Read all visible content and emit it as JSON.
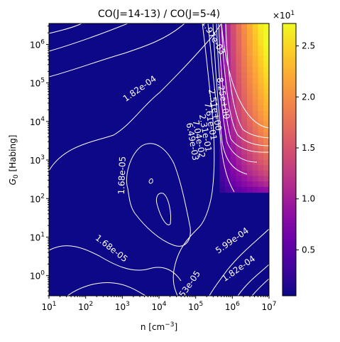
{
  "chart_data": {
    "type": "heatmap",
    "title": "CO(J=14-13) / CO(J=5-4)",
    "xlabel": "n [cm$^{-3}$]",
    "xlabel_text": {
      "base": "n [cm",
      "sup": "−3",
      "tail": "]"
    },
    "ylabel": "$G_0$ [Habing]",
    "ylabel_text": {
      "main": "G",
      "sub": "0",
      "tail": " [Habing]"
    },
    "x_scale": "log",
    "y_scale": "log",
    "xlim": [
      10,
      10000000
    ],
    "ylim": [
      0.3,
      3500000
    ],
    "x_ticks": [
      {
        "value": 10,
        "base": "10",
        "exp": "1"
      },
      {
        "value": 100,
        "base": "10",
        "exp": "2"
      },
      {
        "value": 1000,
        "base": "10",
        "exp": "3"
      },
      {
        "value": 10000,
        "base": "10",
        "exp": "4"
      },
      {
        "value": 100000,
        "base": "10",
        "exp": "5"
      },
      {
        "value": 1000000,
        "base": "10",
        "exp": "6"
      },
      {
        "value": 10000000,
        "base": "10",
        "exp": "7"
      }
    ],
    "y_ticks": [
      {
        "value": 1,
        "base": "10",
        "exp": "0"
      },
      {
        "value": 10,
        "base": "10",
        "exp": "1"
      },
      {
        "value": 100,
        "base": "10",
        "exp": "2"
      },
      {
        "value": 1000,
        "base": "10",
        "exp": "3"
      },
      {
        "value": 10000,
        "base": "10",
        "exp": "4"
      },
      {
        "value": 100000,
        "base": "10",
        "exp": "5"
      },
      {
        "value": 1000000,
        "base": "10",
        "exp": "6"
      }
    ],
    "colormap": "plasma",
    "colorbar": {
      "range": [
        0.05,
        2.72
      ],
      "multiplier": {
        "base": "×10",
        "exp": "1"
      },
      "ticks": [
        {
          "value": 0.5,
          "label": "0.5"
        },
        {
          "value": 1.0,
          "label": "1.0"
        },
        {
          "value": 1.5,
          "label": "1.5"
        },
        {
          "value": 2.0,
          "label": "2.0"
        },
        {
          "value": 2.5,
          "label": "2.5"
        }
      ]
    },
    "contour_labels": [
      {
        "text": "1.97e-03",
        "n": 300000,
        "g0": 1500000,
        "angle": 60
      },
      {
        "text": "1.82e-04",
        "n": 3000,
        "g0": 70000,
        "angle": -35
      },
      {
        "text": "8.25e+00",
        "n": 550000,
        "g0": 40000,
        "angle": 80
      },
      {
        "text": "2.51e+00",
        "n": 330000,
        "g0": 20000,
        "angle": 80
      },
      {
        "text": "7.61e-01",
        "n": 250000,
        "g0": 10000,
        "angle": 80
      },
      {
        "text": "2.31e-01",
        "n": 180000,
        "g0": 5000,
        "angle": 80
      },
      {
        "text": "7.04e-02",
        "n": 120000,
        "g0": 3500,
        "angle": 80
      },
      {
        "text": "6.49e-03",
        "n": 80000,
        "g0": 3000,
        "angle": 80
      },
      {
        "text": "1.68e-05",
        "n": 1000,
        "g0": 400,
        "angle": -88
      },
      {
        "text": "1.68e-05",
        "n": 500,
        "g0": 5,
        "angle": 38
      },
      {
        "text": "5.99e-04",
        "n": 1000000,
        "g0": 8,
        "angle": -35
      },
      {
        "text": "1.82e-04",
        "n": 1500000,
        "g0": 1.5,
        "angle": -35
      },
      {
        "text": "53e-05",
        "n": 70000,
        "g0": 0.6,
        "angle": -55
      }
    ]
  }
}
